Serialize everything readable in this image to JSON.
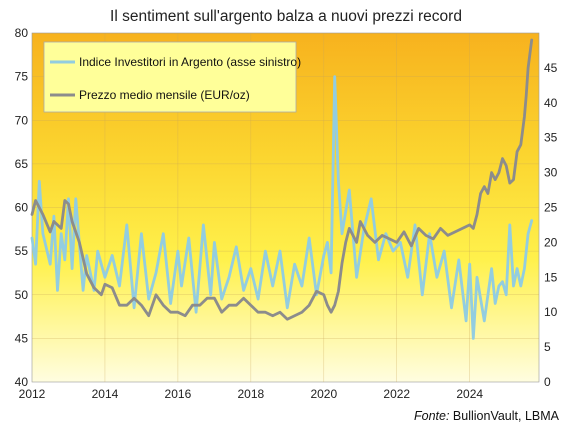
{
  "chart_data": {
    "type": "line",
    "title": "Il sentiment sull'argento balza a nuovi prezzi record",
    "source_label": "Fonte:",
    "source_name": " BullionVault, LBMA",
    "x_ticks": [
      "2012",
      "2014",
      "2016",
      "2018",
      "2020",
      "2022",
      "2024"
    ],
    "xlim": [
      2012,
      2025.9
    ],
    "y_left": {
      "lim": [
        40,
        80
      ],
      "ticks": [
        "40",
        "45",
        "50",
        "55",
        "60",
        "65",
        "70",
        "75",
        "80"
      ]
    },
    "y_right": {
      "lim": [
        0,
        50
      ],
      "ticks": [
        "0",
        "5",
        "10",
        "15",
        "20",
        "25",
        "30",
        "35",
        "40",
        "45"
      ]
    },
    "grid": true,
    "legend_position": "top-left",
    "series": [
      {
        "name": "Indice Investitori in Argento (asse sinistro)",
        "axis": "left",
        "color": "#92cde0",
        "x": [
          2012.0,
          2012.1,
          2012.2,
          2012.3,
          2012.5,
          2012.6,
          2012.7,
          2012.8,
          2012.9,
          2013.0,
          2013.1,
          2013.2,
          2013.4,
          2013.5,
          2013.7,
          2013.8,
          2014.0,
          2014.2,
          2014.4,
          2014.6,
          2014.8,
          2015.0,
          2015.2,
          2015.4,
          2015.6,
          2015.8,
          2016.0,
          2016.1,
          2016.3,
          2016.5,
          2016.7,
          2016.9,
          2017.0,
          2017.2,
          2017.4,
          2017.6,
          2017.8,
          2018.0,
          2018.2,
          2018.4,
          2018.6,
          2018.8,
          2019.0,
          2019.2,
          2019.4,
          2019.6,
          2019.8,
          2020.0,
          2020.1,
          2020.2,
          2020.3,
          2020.4,
          2020.5,
          2020.7,
          2020.9,
          2021.1,
          2021.3,
          2021.5,
          2021.7,
          2021.9,
          2022.1,
          2022.3,
          2022.5,
          2022.7,
          2022.9,
          2023.1,
          2023.3,
          2023.5,
          2023.7,
          2023.9,
          2024.0,
          2024.1,
          2024.2,
          2024.4,
          2024.6,
          2024.7,
          2024.8,
          2024.9,
          2025.0,
          2025.1,
          2025.2,
          2025.3,
          2025.4,
          2025.5,
          2025.6,
          2025.7
        ],
        "values": [
          56.5,
          53.5,
          63,
          57,
          53.5,
          59,
          50.5,
          57,
          54,
          61,
          53,
          61,
          50.5,
          54.5,
          50.5,
          55,
          52,
          54.5,
          51,
          58,
          48.5,
          57,
          49.5,
          52.5,
          57,
          49,
          55,
          51,
          56.5,
          48,
          58,
          50,
          56,
          49.5,
          52,
          55.5,
          50.5,
          53,
          49.5,
          55,
          51,
          55,
          48.5,
          53.5,
          51,
          56.5,
          50,
          54.5,
          56,
          52.5,
          75,
          63,
          57,
          62,
          52,
          57.5,
          61,
          54,
          57,
          55,
          56,
          52,
          58,
          50,
          57,
          52,
          55,
          48.5,
          54,
          47,
          53.5,
          45,
          52,
          47,
          53,
          49,
          51,
          51.5,
          50,
          58,
          51,
          53,
          51,
          53,
          57,
          58.5
        ]
      },
      {
        "name": "Prezzo medio mensile (EUR/oz)",
        "axis": "right",
        "color": "#8c8c8c",
        "x": [
          2012.0,
          2012.1,
          2012.3,
          2012.5,
          2012.6,
          2012.8,
          2012.9,
          2013.0,
          2013.1,
          2013.3,
          2013.5,
          2013.7,
          2013.9,
          2014.0,
          2014.2,
          2014.4,
          2014.6,
          2014.8,
          2015.0,
          2015.2,
          2015.4,
          2015.6,
          2015.8,
          2016.0,
          2016.2,
          2016.4,
          2016.6,
          2016.8,
          2017.0,
          2017.2,
          2017.4,
          2017.6,
          2017.8,
          2018.0,
          2018.2,
          2018.4,
          2018.6,
          2018.8,
          2019.0,
          2019.2,
          2019.4,
          2019.6,
          2019.8,
          2020.0,
          2020.1,
          2020.2,
          2020.3,
          2020.4,
          2020.5,
          2020.6,
          2020.7,
          2020.8,
          2020.9,
          2021.0,
          2021.2,
          2021.4,
          2021.6,
          2021.8,
          2022.0,
          2022.2,
          2022.4,
          2022.6,
          2022.8,
          2023.0,
          2023.2,
          2023.4,
          2023.6,
          2023.8,
          2024.0,
          2024.1,
          2024.2,
          2024.3,
          2024.4,
          2024.5,
          2024.6,
          2024.7,
          2024.8,
          2024.9,
          2025.0,
          2025.1,
          2025.2,
          2025.3,
          2025.4,
          2025.5,
          2025.55,
          2025.6,
          2025.65,
          2025.7
        ],
        "values": [
          24,
          26,
          24,
          21.5,
          23,
          22,
          26,
          25.5,
          23,
          20,
          15.5,
          13.5,
          12.5,
          14,
          13.5,
          11,
          11,
          12,
          11,
          9.5,
          12.5,
          11,
          10,
          10,
          9.5,
          11,
          11,
          12,
          12,
          10,
          11,
          11,
          12,
          11,
          10,
          10,
          9.5,
          10,
          9,
          9.5,
          10,
          11,
          13,
          12.5,
          11,
          10,
          11,
          13,
          17,
          20,
          22,
          21,
          20,
          23,
          21,
          20,
          21,
          20.5,
          20,
          21.5,
          19.5,
          22,
          21,
          20.5,
          22,
          21,
          21.5,
          22,
          22.5,
          22,
          24,
          27,
          28,
          27,
          30,
          29,
          30,
          32,
          31,
          28.5,
          29,
          33,
          34,
          38,
          41,
          45,
          47,
          49
        ]
      }
    ]
  }
}
